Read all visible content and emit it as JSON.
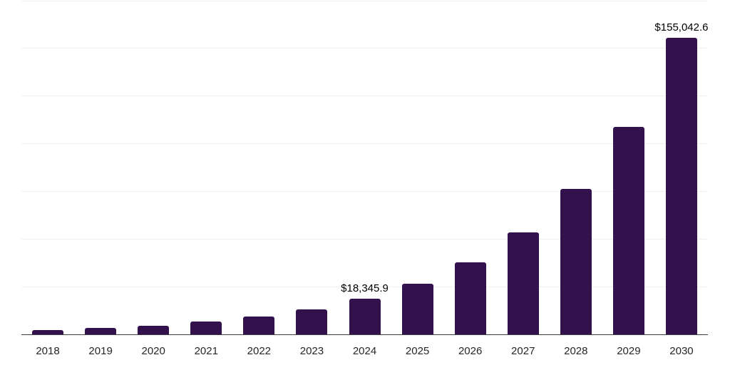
{
  "chart_data": {
    "type": "bar",
    "title": "",
    "xlabel": "",
    "ylabel": "",
    "categories": [
      "2018",
      "2019",
      "2020",
      "2021",
      "2022",
      "2023",
      "2024",
      "2025",
      "2026",
      "2027",
      "2028",
      "2029",
      "2030"
    ],
    "values": [
      2200,
      3100,
      4300,
      6500,
      9200,
      12800,
      18345.9,
      26200,
      37500,
      53300,
      75900,
      108500,
      155042.6
    ],
    "data_labels": {
      "2024": "$18,345.9",
      "2030": "$155,042.6"
    },
    "ylim": [
      0,
      175000
    ],
    "gridline_step": 25000,
    "grid": true,
    "legend": false,
    "yaxis_tick_labels_visible": false,
    "colors": {
      "bar": "#33114d",
      "axis_line": "#3c3c3c",
      "gridline": "#f0f0f0",
      "data_label": "#000000",
      "tick_label": "#262626",
      "background": "#ffffff"
    }
  }
}
